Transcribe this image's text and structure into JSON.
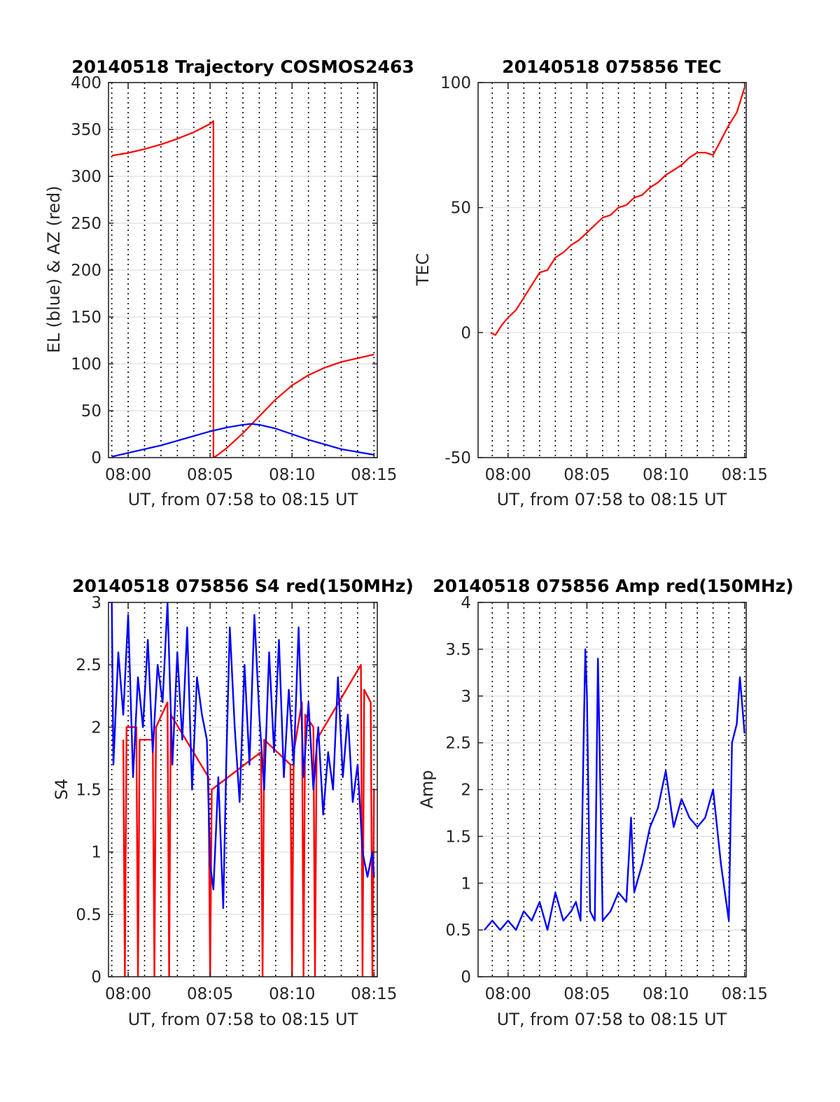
{
  "chart_data": [
    {
      "type": "line",
      "title": "20140518 Trajectory COSMOS2463",
      "xlabel": "UT, from 07:58 to 08:15 UT",
      "ylabel": "EL (blue) & AZ (red)",
      "xlim": [
        -1.2,
        15.2
      ],
      "ylim": [
        0,
        400
      ],
      "xticks": [
        0,
        5,
        10,
        15
      ],
      "xtick_labels": [
        "08:00",
        "08:05",
        "08:10",
        "08:15"
      ],
      "yticks": [
        0,
        50,
        100,
        150,
        200,
        250,
        300,
        350,
        400
      ],
      "ytick_labels": [
        "0",
        "50",
        "100",
        "150",
        "200",
        "250",
        "300",
        "350",
        "400"
      ],
      "x_unit": "minutes after 08:00 UT",
      "grid": true,
      "series": [
        {
          "color": "#ff0000",
          "x": [
            -1.0,
            0.0,
            1.0,
            2.0,
            3.0,
            4.0,
            5.0,
            5.2,
            5.2,
            5.4,
            6.0,
            7.0,
            8.0,
            9.0,
            10.0,
            11.0,
            12.0,
            13.0,
            14.0,
            15.0
          ],
          "y": [
            322,
            325,
            329,
            334,
            340,
            347,
            356,
            359,
            0,
            2,
            10,
            26,
            44,
            62,
            77,
            88,
            96,
            102,
            106,
            110
          ]
        },
        {
          "color": "#0000ff",
          "x": [
            -1.0,
            0.0,
            1.0,
            2.0,
            3.0,
            4.0,
            5.0,
            6.0,
            7.0,
            7.5,
            8.0,
            9.0,
            10.0,
            11.0,
            12.0,
            13.0,
            14.0,
            15.0
          ],
          "y": [
            1,
            5,
            9,
            13,
            18,
            23,
            28,
            32,
            35,
            36,
            35,
            31,
            25,
            19,
            14,
            9,
            6,
            3
          ]
        }
      ]
    },
    {
      "type": "line",
      "title": "20140518 075856 TEC",
      "xlabel": "UT, from 07:58 to 08:15 UT",
      "ylabel": "TEC",
      "xlim": [
        -1.9,
        15.1
      ],
      "ylim": [
        -50,
        100
      ],
      "xticks": [
        0,
        5,
        10,
        15
      ],
      "xtick_labels": [
        "08:00",
        "08:05",
        "08:10",
        "08:15"
      ],
      "yticks": [
        -50,
        0,
        50,
        100
      ],
      "ytick_labels": [
        "-50",
        "0",
        "50",
        "100"
      ],
      "x_unit": "minutes after 08:00 UT",
      "grid": true,
      "series": [
        {
          "color": "#ff0000",
          "x": [
            -1.1,
            -0.8,
            -0.4,
            0.0,
            0.5,
            1.0,
            1.5,
            2.0,
            2.5,
            3.0,
            3.5,
            4.0,
            4.5,
            5.0,
            5.5,
            6.0,
            6.5,
            7.0,
            7.5,
            8.0,
            8.5,
            9.0,
            9.5,
            10.0,
            10.5,
            11.0,
            11.5,
            12.0,
            12.5,
            13.0,
            13.5,
            14.0,
            14.5,
            15.0
          ],
          "y": [
            0,
            -1,
            3,
            6,
            9,
            14,
            19,
            24,
            25,
            30,
            32,
            35,
            37,
            40,
            43,
            46,
            47,
            50,
            51,
            54,
            55,
            58,
            60,
            63,
            65,
            67,
            70,
            72,
            72,
            71,
            77,
            83,
            88,
            98
          ]
        }
      ]
    },
    {
      "type": "line",
      "title": "20140518 075856 S4 red(150MHz)",
      "xlabel": "UT, from 07:58 to 08:15 UT",
      "ylabel": "S4",
      "xlim": [
        -1.2,
        15.2
      ],
      "ylim": [
        0,
        3
      ],
      "xticks": [
        0,
        5,
        10,
        15
      ],
      "xtick_labels": [
        "08:00",
        "08:05",
        "08:10",
        "08:15"
      ],
      "yticks": [
        0,
        0.5,
        1,
        1.5,
        2,
        2.5,
        3
      ],
      "ytick_labels": [
        "0",
        "0.5",
        "1",
        "1.5",
        "2",
        "2.5",
        "3"
      ],
      "x_unit": "minutes after 08:00 UT",
      "grid": true,
      "series": [
        {
          "color": "#ff0000",
          "x": [
            -0.3,
            -0.2,
            -0.1,
            0.5,
            0.6,
            0.7,
            1.5,
            1.6,
            1.7,
            2.4,
            2.5,
            2.6,
            4.9,
            5.0,
            5.1,
            8.1,
            8.2,
            8.3,
            9.9,
            10.0,
            10.1,
            10.6,
            10.7,
            10.8,
            11.3,
            11.4,
            11.5,
            14.2,
            14.3,
            14.4,
            14.8,
            14.9,
            15.0
          ],
          "y": [
            1.9,
            0,
            2.0,
            2.0,
            0,
            1.9,
            1.9,
            0,
            2.0,
            2.2,
            0,
            2.1,
            1.6,
            0,
            1.5,
            1.8,
            0,
            1.9,
            1.7,
            0,
            1.8,
            2.2,
            0,
            2.1,
            2.0,
            0,
            1.9,
            2.5,
            0,
            2.3,
            2.2,
            0,
            1.5
          ]
        },
        {
          "color": "#0000ff",
          "x": [
            -1.0,
            -0.9,
            -0.6,
            -0.3,
            0.0,
            0.3,
            0.6,
            0.9,
            1.2,
            1.5,
            1.8,
            2.1,
            2.4,
            2.7,
            3.0,
            3.3,
            3.6,
            3.9,
            4.2,
            4.5,
            4.8,
            5.0,
            5.2,
            5.5,
            5.8,
            6.0,
            6.2,
            6.5,
            6.8,
            7.1,
            7.4,
            7.7,
            8.0,
            8.3,
            8.6,
            8.9,
            9.2,
            9.5,
            9.8,
            10.1,
            10.4,
            10.7,
            11.0,
            11.3,
            11.6,
            11.9,
            12.2,
            12.5,
            12.8,
            13.1,
            13.4,
            13.7,
            14.0,
            14.3,
            14.6,
            14.9,
            15.0
          ],
          "y": [
            3.0,
            1.7,
            2.6,
            2.1,
            2.9,
            1.6,
            2.4,
            2.0,
            2.7,
            1.8,
            2.5,
            2.2,
            3.0,
            1.7,
            2.6,
            1.9,
            2.8,
            1.5,
            2.4,
            2.1,
            1.9,
            0.9,
            0.7,
            1.6,
            0.55,
            1.8,
            2.8,
            2.0,
            1.4,
            2.5,
            1.7,
            2.9,
            2.1,
            1.5,
            2.6,
            1.8,
            2.7,
            1.6,
            2.3,
            1.7,
            2.8,
            1.6,
            2.2,
            1.5,
            2.0,
            1.3,
            1.8,
            1.5,
            2.4,
            1.6,
            2.1,
            1.4,
            1.7,
            1.0,
            0.8,
            1.0,
            0.8
          ]
        }
      ]
    },
    {
      "type": "line",
      "title": "20140518 075856 Amp red(150MHz)",
      "xlabel": "UT, from 07:58 to 08:15 UT",
      "ylabel": "Amp",
      "xlim": [
        -1.9,
        15.1
      ],
      "ylim": [
        0,
        4
      ],
      "xticks": [
        0,
        5,
        10,
        15
      ],
      "xtick_labels": [
        "08:00",
        "08:05",
        "08:10",
        "08:15"
      ],
      "yticks": [
        0,
        0.5,
        1,
        1.5,
        2,
        2.5,
        3,
        3.5,
        4
      ],
      "ytick_labels": [
        "0",
        "0.5",
        "1",
        "1.5",
        "2",
        "2.5",
        "3",
        "3.5",
        "4"
      ],
      "x_unit": "minutes after 08:00 UT",
      "grid": true,
      "series": [
        {
          "color": "#0000ff",
          "x": [
            -1.5,
            -1.0,
            -0.5,
            0.0,
            0.5,
            1.0,
            1.5,
            2.0,
            2.5,
            3.0,
            3.5,
            4.0,
            4.3,
            4.6,
            4.8,
            4.9,
            5.0,
            5.2,
            5.5,
            5.7,
            5.8,
            6.0,
            6.5,
            7.0,
            7.5,
            7.8,
            8.0,
            8.5,
            9.0,
            9.5,
            10.0,
            10.5,
            11.0,
            11.5,
            12.0,
            12.5,
            13.0,
            13.5,
            14.0,
            14.2,
            14.5,
            14.7,
            15.0
          ],
          "y": [
            0.5,
            0.6,
            0.5,
            0.6,
            0.5,
            0.7,
            0.6,
            0.8,
            0.5,
            0.9,
            0.6,
            0.7,
            0.8,
            0.6,
            2.6,
            3.5,
            3.0,
            0.7,
            0.6,
            3.4,
            2.5,
            0.6,
            0.7,
            0.9,
            0.8,
            1.7,
            0.9,
            1.2,
            1.6,
            1.8,
            2.2,
            1.6,
            1.9,
            1.7,
            1.6,
            1.7,
            2.0,
            1.2,
            0.6,
            2.5,
            2.7,
            3.2,
            2.6
          ]
        }
      ]
    }
  ]
}
